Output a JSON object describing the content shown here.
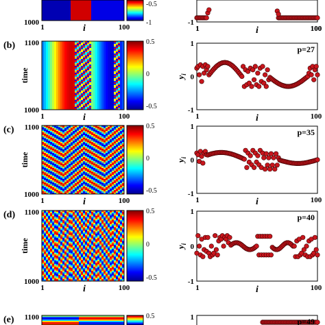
{
  "chart_data": [
    {
      "panel": "a",
      "left": {
        "type": "heatmap",
        "xlabel": "i",
        "x_ticks": [
          "1",
          "100"
        ],
        "y_ticks": [
          "1000"
        ],
        "colorbar_ticks": [
          "-0.5",
          "-1"
        ]
      },
      "right": {
        "type": "scatter",
        "x_ticks": [
          "1",
          "100"
        ],
        "y_ticks": [
          "-1"
        ]
      }
    },
    {
      "panel": "b",
      "left": {
        "type": "heatmap",
        "xlabel": "i",
        "ylabel": "time",
        "x_ticks": [
          "1",
          "100"
        ],
        "y_ticks": [
          "1100",
          "1000"
        ],
        "colorbar_ticks": [
          "0.5",
          "0",
          "-0.5"
        ]
      },
      "right": {
        "type": "scatter",
        "annotation": "p=27",
        "ylabel": "y",
        "ysub": "i",
        "xlabel": "i",
        "x_ticks": [
          "1",
          "100"
        ],
        "y_ticks": [
          "1",
          "0",
          "-1"
        ],
        "xlim": [
          1,
          100
        ],
        "ylim": [
          -1,
          1
        ]
      }
    },
    {
      "panel": "c",
      "left": {
        "type": "heatmap",
        "xlabel": "i",
        "ylabel": "time",
        "x_ticks": [
          "1",
          "100"
        ],
        "y_ticks": [
          "1100",
          "1000"
        ],
        "colorbar_ticks": [
          "0.5",
          "0",
          "-0.5"
        ]
      },
      "right": {
        "type": "scatter",
        "annotation": "p=35",
        "ylabel": "y",
        "ysub": "i",
        "xlabel": "i",
        "x_ticks": [
          "1",
          "100"
        ],
        "y_ticks": [
          "1",
          "0",
          "-1"
        ],
        "xlim": [
          1,
          100
        ],
        "ylim": [
          -1,
          1
        ]
      }
    },
    {
      "panel": "d",
      "left": {
        "type": "heatmap",
        "xlabel": "i",
        "ylabel": "time",
        "x_ticks": [
          "1",
          "100"
        ],
        "y_ticks": [
          "1100",
          "1000"
        ],
        "colorbar_ticks": [
          "0.5",
          "0",
          "-0.5"
        ]
      },
      "right": {
        "type": "scatter",
        "annotation": "p=40",
        "ylabel": "y",
        "ysub": "i",
        "xlabel": "i",
        "x_ticks": [
          "1",
          "100"
        ],
        "y_ticks": [
          "1",
          "0",
          "-1"
        ],
        "xlim": [
          1,
          100
        ],
        "ylim": [
          -1,
          1
        ]
      }
    },
    {
      "panel": "e",
      "left": {
        "type": "heatmap",
        "y_ticks": [
          "1100"
        ],
        "colorbar_ticks": [
          "0.5"
        ]
      },
      "right": {
        "type": "scatter",
        "annotation": "p=49",
        "y_ticks": [
          "1"
        ]
      }
    }
  ],
  "labels": {
    "a": "",
    "b": "(b)",
    "c": "(c)",
    "d": "(d)",
    "e": "(e)"
  },
  "colors": {
    "marker_fill": "#c8161d",
    "marker_edge": "#3a0000",
    "jet_dark_red": "#800000",
    "jet_dark_blue": "#00008f"
  }
}
